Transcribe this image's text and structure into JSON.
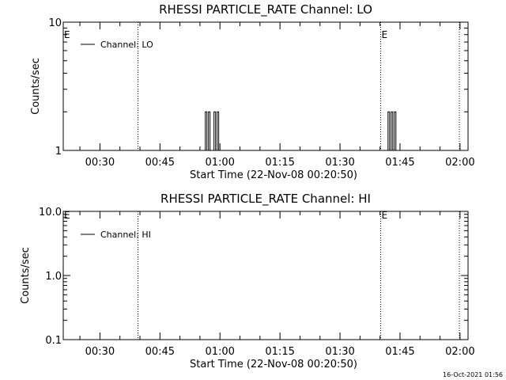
{
  "chart_data": [
    {
      "type": "line",
      "title": "RHESSI PARTICLE_RATE Channel: LO",
      "xlabel": "Start Time (22-Nov-08 00:20:50)",
      "ylabel": "Counts/sec",
      "yscale": "log",
      "ylim": [
        1,
        10
      ],
      "xlim": [
        "00:20:50",
        "02:02:00"
      ],
      "y_ticks": [
        "1",
        "10"
      ],
      "x_ticks": [
        "00:30",
        "00:45",
        "01:00",
        "01:15",
        "01:30",
        "01:45",
        "02:00"
      ],
      "legend": {
        "position": "top-left",
        "label": "Channel: LO"
      },
      "markers": [
        {
          "time": "00:20:50",
          "label": "E"
        },
        {
          "time": "01:40:10",
          "label": "E"
        }
      ],
      "dotted_lines": [
        "00:39:30",
        "01:40:10",
        "01:59:50"
      ],
      "series": [
        {
          "name": "Channel: LO",
          "bursts": [
            {
              "start": "00:56:20",
              "end": "00:57:50",
              "peak": 2,
              "base": 1
            },
            {
              "start": "00:58:30",
              "end": "01:00:00",
              "peak": 2,
              "base": 1
            },
            {
              "start": "01:42:00",
              "end": "01:44:00",
              "peak": 2,
              "base": 1
            }
          ]
        }
      ]
    },
    {
      "type": "line",
      "title": "RHESSI PARTICLE_RATE Channel: HI",
      "xlabel": "Start Time (22-Nov-08 00:20:50)",
      "ylabel": "Counts/sec",
      "yscale": "log",
      "ylim": [
        0.1,
        10
      ],
      "xlim": [
        "00:20:50",
        "02:02:00"
      ],
      "y_ticks": [
        "0.1",
        "1.0",
        "10.0"
      ],
      "x_ticks": [
        "00:30",
        "00:45",
        "01:00",
        "01:15",
        "01:30",
        "01:45",
        "02:00"
      ],
      "legend": {
        "position": "top-left",
        "label": "Channel: HI"
      },
      "markers": [
        {
          "time": "00:20:50",
          "label": "E"
        },
        {
          "time": "01:40:10",
          "label": "E"
        }
      ],
      "dotted_lines": [
        "00:39:30",
        "01:40:10",
        "01:59:50"
      ],
      "series": [
        {
          "name": "Channel: HI",
          "bursts": []
        }
      ]
    }
  ],
  "footer": {
    "timestamp": "16-Oct-2021 01:56"
  }
}
